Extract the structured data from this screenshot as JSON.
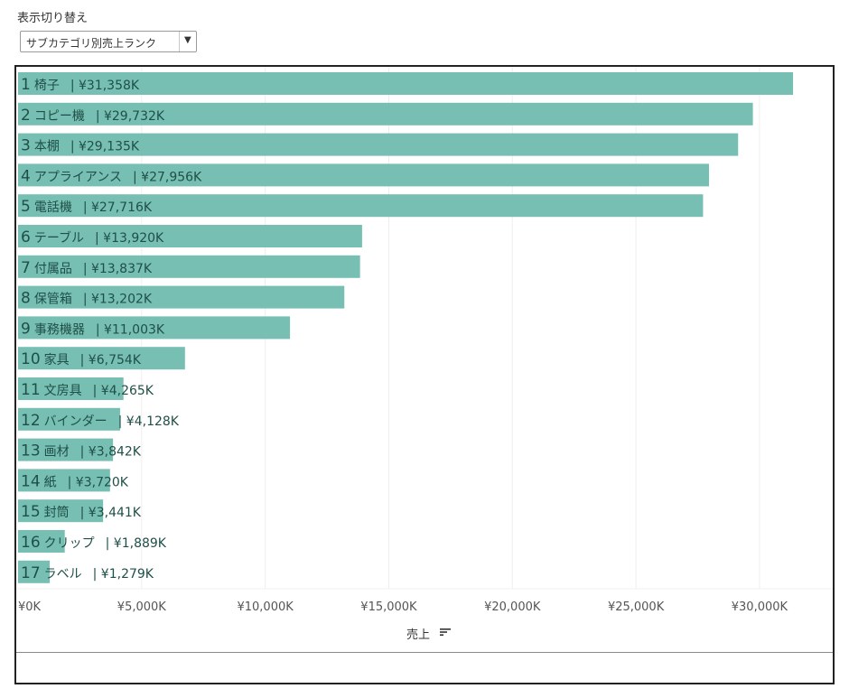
{
  "controls": {
    "switch_label": "表示切り替え",
    "selected_view": "サブカテゴリ別売上ランク",
    "dropdown_icon": "chevron-down-icon"
  },
  "colors": {
    "bar": "#76bfb2",
    "bar_text": "#1f4f48",
    "axis_text": "#555555",
    "grid": "#eeeeee",
    "frame": "#222222"
  },
  "chart_data": {
    "type": "bar",
    "orientation": "horizontal",
    "title": "",
    "xlabel": "売上",
    "xlabel_icon": "sort-descending-icon",
    "ylabel": "",
    "xlim": [
      0,
      33000
    ],
    "unit": "K",
    "currency": "¥",
    "ticks": [
      0,
      5000,
      10000,
      15000,
      20000,
      25000,
      30000
    ],
    "tick_labels": [
      "¥0K",
      "¥5,000K",
      "¥10,000K",
      "¥15,000K",
      "¥20,000K",
      "¥25,000K",
      "¥30,000K"
    ],
    "grid": true,
    "bars": [
      {
        "rank": "1",
        "category": "椅子",
        "value": 31358,
        "label": "| ¥31,358K"
      },
      {
        "rank": "2",
        "category": "コピー機",
        "value": 29732,
        "label": "| ¥29,732K"
      },
      {
        "rank": "3",
        "category": "本棚",
        "value": 29135,
        "label": "| ¥29,135K"
      },
      {
        "rank": "4",
        "category": "アプライアンス",
        "value": 27956,
        "label": "| ¥27,956K"
      },
      {
        "rank": "5",
        "category": "電話機",
        "value": 27716,
        "label": "| ¥27,716K"
      },
      {
        "rank": "6",
        "category": "テーブル",
        "value": 13920,
        "label": "| ¥13,920K"
      },
      {
        "rank": "7",
        "category": "付属品",
        "value": 13837,
        "label": "| ¥13,837K"
      },
      {
        "rank": "8",
        "category": "保管箱",
        "value": 13202,
        "label": "| ¥13,202K"
      },
      {
        "rank": "9",
        "category": "事務機器",
        "value": 11003,
        "label": "| ¥11,003K"
      },
      {
        "rank": "10",
        "category": "家具",
        "value": 6754,
        "label": "| ¥6,754K"
      },
      {
        "rank": "11",
        "category": "文房具",
        "value": 4265,
        "label": "| ¥4,265K"
      },
      {
        "rank": "12",
        "category": "バインダー",
        "value": 4128,
        "label": "| ¥4,128K"
      },
      {
        "rank": "13",
        "category": "画材",
        "value": 3842,
        "label": "| ¥3,842K"
      },
      {
        "rank": "14",
        "category": "紙",
        "value": 3720,
        "label": "| ¥3,720K"
      },
      {
        "rank": "15",
        "category": "封筒",
        "value": 3441,
        "label": "| ¥3,441K"
      },
      {
        "rank": "16",
        "category": "クリップ",
        "value": 1889,
        "label": "| ¥1,889K"
      },
      {
        "rank": "17",
        "category": "ラベル",
        "value": 1279,
        "label": "| ¥1,279K"
      }
    ]
  }
}
